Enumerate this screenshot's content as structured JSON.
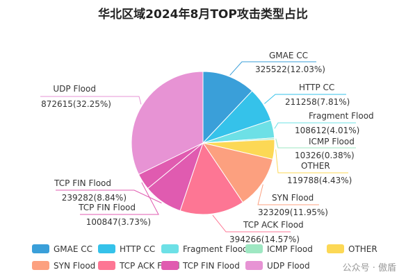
{
  "chart_data": {
    "type": "pie",
    "title": "华北区域2024年8月TOP攻击类型占比",
    "slices": [
      {
        "name": "GMAE CC",
        "value": 325522,
        "pct": "12.03%",
        "color": "#3a9fd9"
      },
      {
        "name": "HTTP CC",
        "value": 211258,
        "pct": "7.81%",
        "color": "#35c2ea"
      },
      {
        "name": "Fragment Flood",
        "value": 108612,
        "pct": "4.01%",
        "color": "#6de0e6"
      },
      {
        "name": "ICMP Flood",
        "value": 10326,
        "pct": "0.38%",
        "color": "#9ee7c2"
      },
      {
        "name": "OTHER",
        "value": 119788,
        "pct": "4.43%",
        "color": "#fcd855"
      },
      {
        "name": "SYN Flood",
        "value": 323209,
        "pct": "11.95%",
        "color": "#fca07f"
      },
      {
        "name": "TCP ACK Flood",
        "value": 394266,
        "pct": "14.57%",
        "color": "#fd7694"
      },
      {
        "name": "TCP FIN Flood",
        "value": 239282,
        "pct": "8.84%",
        "color": "#e05bb0"
      },
      {
        "name": "TCP FIN Flood",
        "value": 100847,
        "pct": "3.73%",
        "color": "#e05bb0"
      },
      {
        "name": "UDP Flood",
        "value": 872615,
        "pct": "32.25%",
        "color": "#e793d4"
      }
    ],
    "legend": [
      {
        "name": "GMAE CC",
        "color": "#3a9fd9"
      },
      {
        "name": "HTTP CC",
        "color": "#35c2ea"
      },
      {
        "name": "Fragment Flood",
        "color": "#6de0e6"
      },
      {
        "name": "ICMP Flood",
        "color": "#9ee7c2"
      },
      {
        "name": "OTHER",
        "color": "#fcd855"
      },
      {
        "name": "SYN Flood",
        "color": "#fca07f"
      },
      {
        "name": "TCP ACK Flood",
        "color": "#fd7694"
      },
      {
        "name": "TCP FIN Flood",
        "color": "#e05bb0"
      },
      {
        "name": "UDP Flood",
        "color": "#e793d4"
      }
    ],
    "legend_position": "bottom"
  },
  "watermark": "公众号 · 傲盾"
}
